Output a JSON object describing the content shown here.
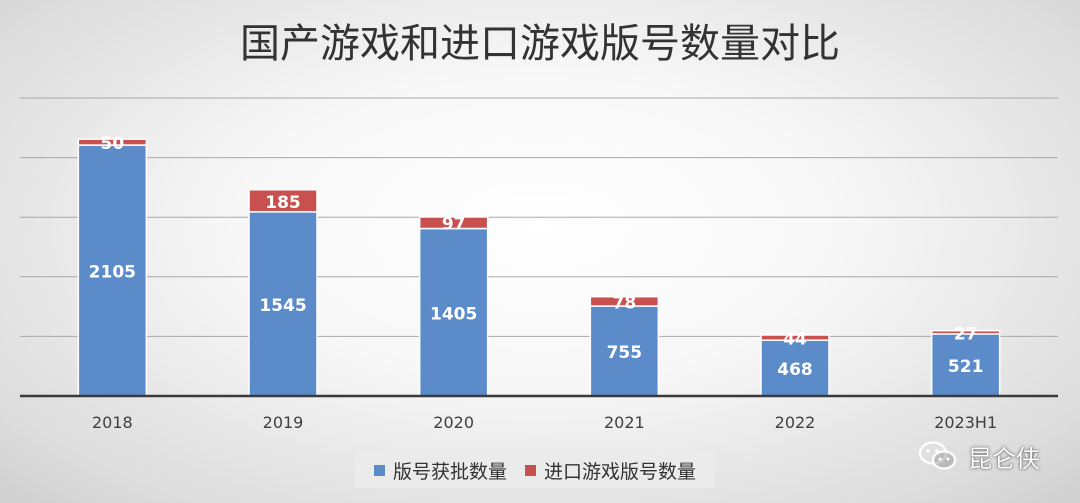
{
  "chart_data": {
    "type": "bar",
    "stacked": true,
    "title": "国产游戏和进口游戏版号数量对比",
    "categories": [
      "2018",
      "2019",
      "2020",
      "2021",
      "2022",
      "2023H1"
    ],
    "series": [
      {
        "name": "版号获批数量",
        "values": [
          2105,
          1545,
          1405,
          755,
          468,
          521
        ],
        "color": "#5b8cc9"
      },
      {
        "name": "进口游戏版号数量",
        "values": [
          50,
          185,
          97,
          78,
          44,
          27
        ],
        "color": "#c85150"
      }
    ],
    "ylim": [
      0,
      2500
    ],
    "grid": true,
    "legend": "bottom"
  },
  "watermark": {
    "text": "昆仑侠",
    "icon": "wechat-icon"
  }
}
